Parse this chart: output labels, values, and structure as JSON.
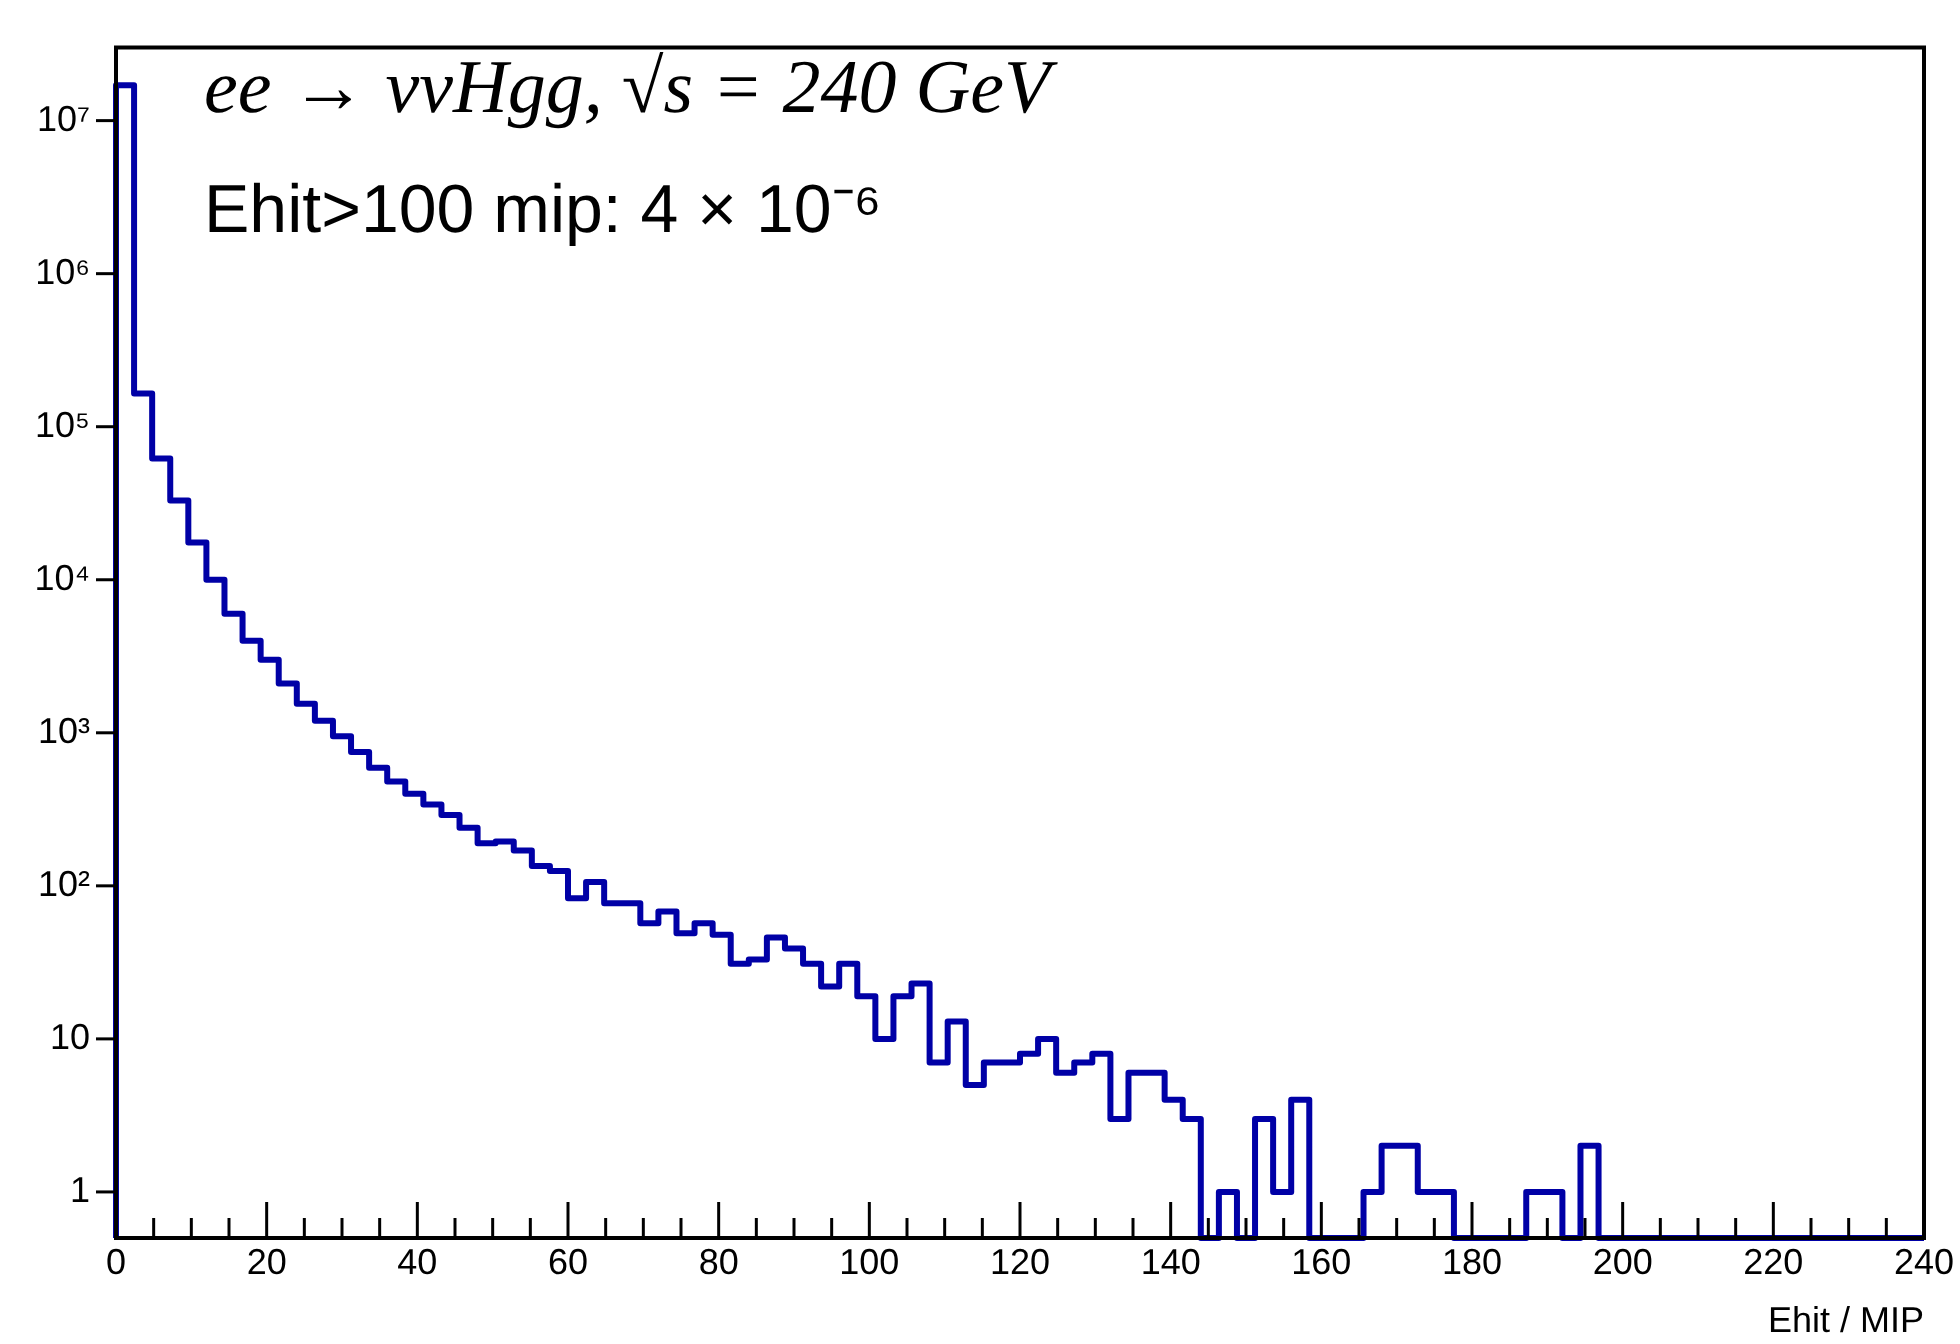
{
  "chart_data": {
    "type": "histogram",
    "xlabel": "Ehit / MIP",
    "annotations": [
      "ee → ννHgg, √s = 240 GeV",
      "Ehit>100 mip: 4 × 10⁻⁶"
    ],
    "bins": [
      0,
      2.4,
      4.8,
      7.2,
      9.6,
      12,
      14.4,
      16.8,
      19.2,
      21.6,
      24,
      26.4,
      28.8,
      31.2,
      33.6,
      36,
      38.4,
      40.8,
      43.2,
      45.6,
      48,
      50.4,
      52.8,
      55.2,
      57.6,
      60,
      62.4,
      64.8,
      67.2,
      69.6,
      72,
      74.4,
      76.8,
      79.2,
      81.6,
      84,
      86.4,
      88.8,
      91.2,
      93.6,
      96,
      98.4,
      100.8,
      103.2,
      105.6,
      108,
      110.4,
      112.8,
      115.2,
      117.6,
      120,
      122.4,
      124.8,
      127.2,
      129.6,
      132,
      134.4,
      136.8,
      139.2,
      141.6,
      144,
      146.4,
      148.8,
      151.2,
      153.6,
      156,
      158.4,
      160.8,
      163.2,
      165.6,
      168,
      170.4,
      172.8,
      175.2,
      177.6,
      180,
      182.4,
      184.8,
      187.2,
      189.6,
      192,
      194.4,
      196.8,
      199.2,
      201.6,
      204,
      206.4,
      208.8,
      211.2,
      213.6,
      216,
      218.4,
      220.8,
      223.2,
      225.6,
      228,
      230.4,
      232.8,
      235.2,
      237.6,
      240
    ],
    "values": [
      17000000,
      165000,
      62000,
      33000,
      17500,
      10000,
      6000,
      4000,
      3000,
      2100,
      1550,
      1200,
      950,
      750,
      590,
      480,
      400,
      340,
      290,
      240,
      190,
      195,
      170,
      135,
      125,
      83,
      106,
      77,
      77,
      57,
      68,
      49,
      57,
      48,
      31,
      33,
      46,
      39,
      31,
      22,
      31,
      19,
      10,
      19,
      23,
      7,
      13,
      5,
      7,
      7,
      8,
      10,
      6,
      7,
      8,
      3,
      6,
      6,
      4,
      3,
      null,
      1,
      null,
      3,
      1,
      4,
      null,
      null,
      null,
      1,
      2,
      2,
      1,
      1,
      null,
      null,
      null,
      null,
      1,
      1,
      null,
      2,
      null,
      null,
      null,
      null,
      null,
      null,
      null,
      null,
      null,
      null,
      null,
      null,
      null,
      null,
      null,
      null,
      null,
      null
    ],
    "color": "#0000a6",
    "log": "y",
    "grid": false,
    "xlim": [
      0,
      240
    ],
    "xticks": [
      0,
      {
        "value": 5,
        "label": null
      },
      {
        "value": 10,
        "label": null
      },
      {
        "value": 15,
        "label": null
      },
      20,
      {
        "value": 25,
        "label": null
      },
      {
        "value": 30,
        "label": null
      },
      {
        "value": 35,
        "label": null
      },
      40,
      {
        "value": 45,
        "label": null
      },
      {
        "value": 50,
        "label": null
      },
      {
        "value": 55,
        "label": null
      },
      60,
      {
        "value": 65,
        "label": null
      },
      {
        "value": 70,
        "label": null
      },
      {
        "value": 75,
        "label": null
      },
      80,
      {
        "value": 85,
        "label": null
      },
      {
        "value": 90,
        "label": null
      },
      {
        "value": 95,
        "label": null
      },
      100,
      {
        "value": 105,
        "label": null
      },
      {
        "value": 110,
        "label": null
      },
      {
        "value": 115,
        "label": null
      },
      120,
      {
        "value": 125,
        "label": null
      },
      {
        "value": 130,
        "label": null
      },
      {
        "value": 135,
        "label": null
      },
      140,
      {
        "value": 145,
        "label": null
      },
      {
        "value": 150,
        "label": null
      },
      {
        "value": 155,
        "label": null
      },
      160,
      {
        "value": 165,
        "label": null
      },
      {
        "value": 170,
        "label": null
      },
      {
        "value": 175,
        "label": null
      },
      180,
      {
        "value": 185,
        "label": null
      },
      {
        "value": 190,
        "label": null
      },
      {
        "value": 195,
        "label": null
      },
      200,
      {
        "value": 205,
        "label": null
      },
      {
        "value": 210,
        "label": null
      },
      {
        "value": 215,
        "label": null
      },
      220,
      {
        "value": 225,
        "label": null
      },
      {
        "value": 230,
        "label": null
      },
      {
        "value": 235,
        "label": null
      },
      240
    ],
    "ylim": [
      0.5,
      30000000
    ],
    "yticks": [
      1,
      10,
      {
        "value": 100,
        "label": "10²"
      },
      {
        "value": 1000,
        "label": "10³"
      },
      {
        "value": 10000,
        "label": "10⁴"
      },
      {
        "value": 100000,
        "label": "10⁵"
      },
      {
        "value": 1000000,
        "label": "10⁶"
      },
      {
        "value": 10000000,
        "label": "10⁷"
      }
    ]
  }
}
